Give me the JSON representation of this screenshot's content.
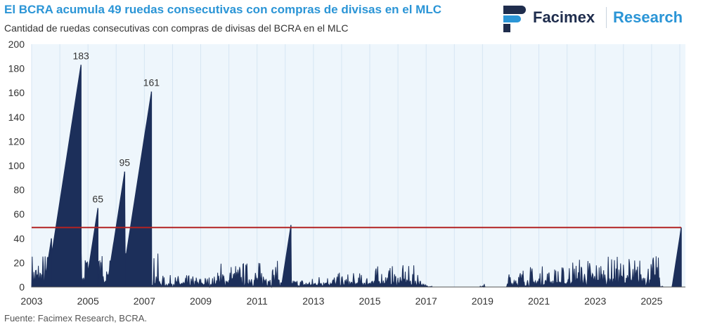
{
  "header": {
    "title": "El BCRA acumula 49 ruedas consecutivas con compras de divisas en el MLC",
    "subtitle": "Cantidad de ruedas consecutivas con compras de divisas del BCRA en el MLC"
  },
  "logo": {
    "name": "Facimex",
    "research": "Research",
    "colors": {
      "navy": "#1f2d4d",
      "blue": "#2b95d6"
    }
  },
  "footer": {
    "source": "Fuente: Facimex Research, BCRA."
  },
  "chart_data": {
    "type": "area",
    "title": "Cantidad de ruedas consecutivas con compras de divisas del BCRA en el MLC",
    "xlim": [
      2003,
      2026.2
    ],
    "ylim": [
      0,
      200
    ],
    "yticks": [
      0,
      20,
      40,
      60,
      80,
      100,
      120,
      140,
      160,
      180,
      200
    ],
    "xticks": [
      "2003",
      "2005",
      "2007",
      "2009",
      "2011",
      "2013",
      "2015",
      "2017",
      "2019",
      "2021",
      "2023",
      "2025"
    ],
    "grid": "vertical",
    "series_color": "#1c2f5a",
    "plot_background": "#eef6fc",
    "reference_line": {
      "value": 49,
      "color": "#b22222"
    },
    "peaks": [
      {
        "year": 2003.7,
        "value": 40
      },
      {
        "year": 2004.75,
        "value": 183,
        "label": "183"
      },
      {
        "year": 2005.35,
        "value": 65,
        "label": "65"
      },
      {
        "year": 2006.3,
        "value": 95,
        "label": "95"
      },
      {
        "year": 2007.25,
        "value": 161,
        "label": "161"
      },
      {
        "year": 2012.2,
        "value": 51
      },
      {
        "year": 2026.05,
        "value": 49
      }
    ]
  }
}
